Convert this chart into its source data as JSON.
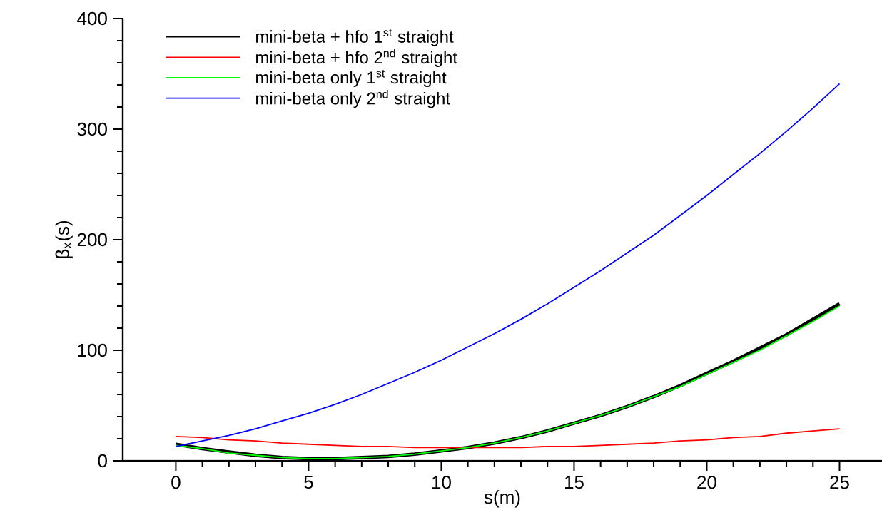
{
  "chart_data": {
    "type": "line",
    "xlabel": "s(m)",
    "ylabel": "β$_{x}$(s)",
    "x": [
      0,
      1,
      2,
      3,
      4,
      5,
      6,
      7,
      8,
      9,
      10,
      11,
      12,
      13,
      14,
      15,
      16,
      17,
      18,
      19,
      20,
      21,
      22,
      23,
      24,
      25
    ],
    "series": [
      {
        "name": "mini-beta + hfo  1$^{st}$ straight",
        "color": "#000000",
        "values": [
          15,
          11,
          8,
          5,
          3,
          2,
          2,
          3,
          4,
          6,
          9,
          12,
          16,
          21,
          27,
          34,
          41,
          49,
          58,
          68,
          79,
          90,
          102,
          114,
          128,
          142
        ]
      },
      {
        "name": "mini-beta + hfo 2$^{nd}$ straight",
        "color": "#ff0000",
        "values": [
          22,
          21,
          19,
          18,
          16,
          15,
          14,
          13,
          13,
          12,
          12,
          12,
          12,
          12,
          13,
          13,
          14,
          15,
          16,
          18,
          19,
          21,
          22,
          25,
          27,
          29
        ]
      },
      {
        "name": "mini-beta only 1$^{st}$ straight",
        "color": "#00ff00",
        "values": [
          14,
          11,
          7,
          5,
          3,
          2,
          2,
          3,
          4,
          6,
          9,
          12,
          16,
          21,
          27,
          34,
          41,
          49,
          58,
          67,
          78,
          89,
          100,
          113,
          126,
          140
        ]
      },
      {
        "name": "mini-beta only 2$^{nd}$ straight",
        "color": "#0000ff",
        "values": [
          13,
          18,
          23,
          29,
          36,
          43,
          51,
          60,
          70,
          80,
          91,
          103,
          115,
          128,
          142,
          157,
          172,
          188,
          204,
          222,
          240,
          259,
          278,
          298,
          319,
          341
        ]
      }
    ],
    "xlim": [
      -2,
      26.6
    ],
    "ylim": [
      0,
      400
    ],
    "xticks": [
      0,
      5,
      10,
      15,
      20,
      25
    ],
    "yticks": [
      0,
      100,
      200,
      300,
      400
    ],
    "legend": "top left",
    "marker": "none",
    "line_style": "solid"
  }
}
